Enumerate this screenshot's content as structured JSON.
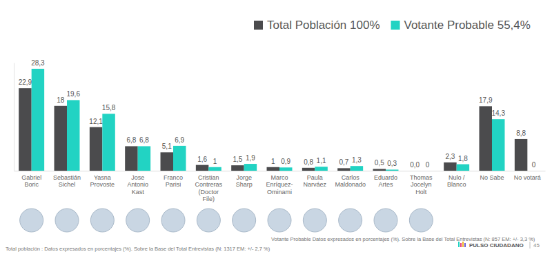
{
  "chart_data": {
    "type": "bar",
    "categories": [
      "Gabriel Boric",
      "Sebastián Sichel",
      "Yasna Provoste",
      "Jose Antonio Kast",
      "Franco Parisi",
      "Cristian Contreras (Doctor File)",
      "Jorge Sharp",
      "Marco Enríquez-Ominami",
      "Paula Narváez",
      "Carlos Maldonado",
      "Eduardo Artes",
      "Thomas Jocelyn Holt",
      "Nulo / Blanco",
      "No Sabe",
      "No votará"
    ],
    "series": [
      {
        "name": "Total Población 100%",
        "color": "#4b4b4d",
        "values": [
          22.9,
          18,
          12.1,
          6.8,
          5.1,
          1.6,
          1.5,
          1,
          0.8,
          0.7,
          0.5,
          0.0,
          2.3,
          17.9,
          8.8
        ],
        "value_labels": [
          "22,9",
          "18",
          "12,1",
          "6,8",
          "5,1",
          "1,6",
          "1,5",
          "1",
          "0,8",
          "0,7",
          "0,5",
          "0,0",
          "2,3",
          "17,9",
          "8,8"
        ]
      },
      {
        "name": "Votante Probable 55,4%",
        "color": "#22d3c3",
        "values": [
          28.3,
          19.6,
          15.8,
          6.8,
          6.9,
          1,
          1.9,
          0.9,
          1.1,
          1.3,
          0.3,
          0,
          1.8,
          14.3,
          0
        ],
        "value_labels": [
          "28,3",
          "19,6",
          "15,8",
          "6,8",
          "6,9",
          "1",
          "1,9",
          "0,9",
          "1,1",
          "1,3",
          "0,3",
          "0",
          "1,8",
          "14,3",
          "0"
        ]
      }
    ],
    "ylim": [
      0,
      30
    ],
    "data_labels": true,
    "grid": false,
    "legend": "top-right",
    "tick_labels": "x",
    "annotations": [
      "Votante Probable Datos expresados en porcentajes (%). Sobre la Base del Total Entrevistas (N: 857  EM: +/- 3,3 %)",
      "Total población : Datos expresados en porcentajes (%). Sobre la Base del Total Entrevistas (N: 1317  EM: +/- 2,7 %)",
      "PULSO CIUDADANO",
      "45"
    ]
  }
}
